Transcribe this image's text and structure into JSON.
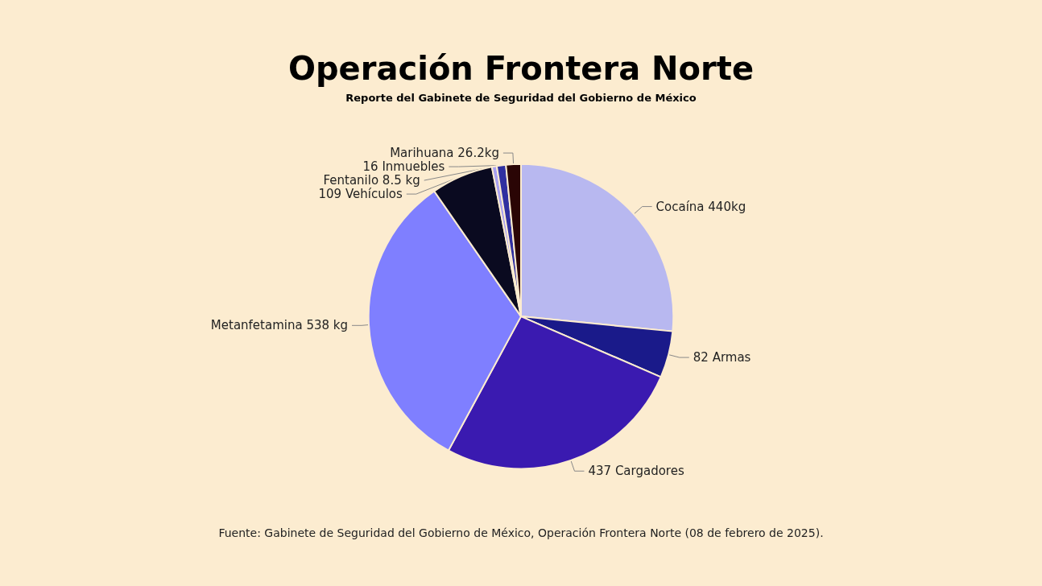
{
  "chart_data": {
    "type": "pie",
    "title": "Operación Frontera Norte",
    "subtitle": "Reporte del Gabinete de Seguridad del Gobierno de México",
    "categories": [
      "Cocaína 440kg",
      "82 Armas",
      "437 Cargadores",
      "Metanfetamina 538 kg",
      "109 Vehículos",
      "Fentanilo 8.5 kg",
      "16 Inmuebles",
      "Marihuana 26.2kg"
    ],
    "values": [
      440,
      82,
      437,
      538,
      109,
      8.5,
      16,
      26.2
    ],
    "colors": [
      "#b8b8f0",
      "#1a1a8a",
      "#3a1ab0",
      "#7f7fff",
      "#0a0a20",
      "#a8a0f0",
      "#3030a0",
      "#2a0505"
    ],
    "annotations": [
      "Fuente: Gabinete de Seguridad del Gobierno de México, Operación Frontera Norte (08 de febrero de 2025)."
    ],
    "legend": false
  }
}
